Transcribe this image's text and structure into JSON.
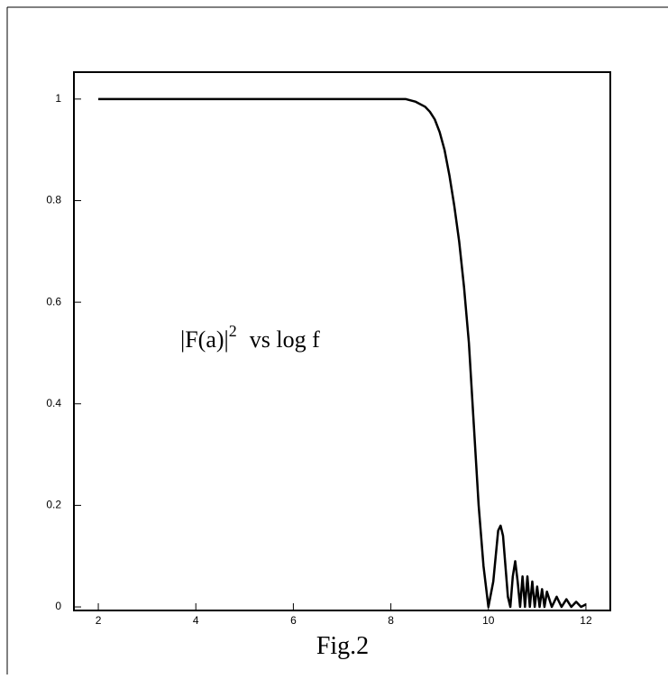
{
  "chart_data": {
    "type": "line",
    "annotation": {
      "base": "|F(a)|",
      "sup": "2",
      "rest": "vs  log f"
    },
    "caption": "Fig.2",
    "x": [
      2,
      3,
      4,
      5,
      6,
      7,
      8,
      8.3,
      8.5,
      8.7,
      8.8,
      8.9,
      9.0,
      9.1,
      9.2,
      9.3,
      9.4,
      9.5,
      9.6,
      9.7,
      9.8,
      9.9,
      10.0,
      10.1,
      10.2,
      10.25,
      10.3,
      10.4,
      10.45,
      10.5,
      10.55,
      10.6,
      10.65,
      10.7,
      10.75,
      10.8,
      10.85,
      10.9,
      10.95,
      11.0,
      11.05,
      11.1,
      11.15,
      11.2,
      11.3,
      11.4,
      11.5,
      11.6,
      11.7,
      11.8,
      11.9,
      12.0
    ],
    "series": [
      {
        "color": "#000000",
        "values": [
          1,
          1,
          1,
          1,
          1,
          1,
          1,
          1,
          0.995,
          0.985,
          0.975,
          0.96,
          0.935,
          0.9,
          0.85,
          0.79,
          0.72,
          0.63,
          0.52,
          0.36,
          0.2,
          0.08,
          0.0,
          0.05,
          0.15,
          0.16,
          0.14,
          0.02,
          0.0,
          0.06,
          0.09,
          0.05,
          0.0,
          0.06,
          0.0,
          0.06,
          0.0,
          0.05,
          0.0,
          0.04,
          0.0,
          0.035,
          0.0,
          0.03,
          0.0,
          0.02,
          0.0,
          0.015,
          0.0,
          0.01,
          0.0,
          0.005
        ]
      }
    ],
    "xlim": [
      1.5,
      12.5
    ],
    "ylim": [
      -0.007,
      1.053
    ],
    "xticks": [
      2,
      4,
      6,
      8,
      10,
      12
    ],
    "yticks": [
      0,
      0.2,
      0.4,
      0.6,
      0.8,
      1
    ]
  }
}
